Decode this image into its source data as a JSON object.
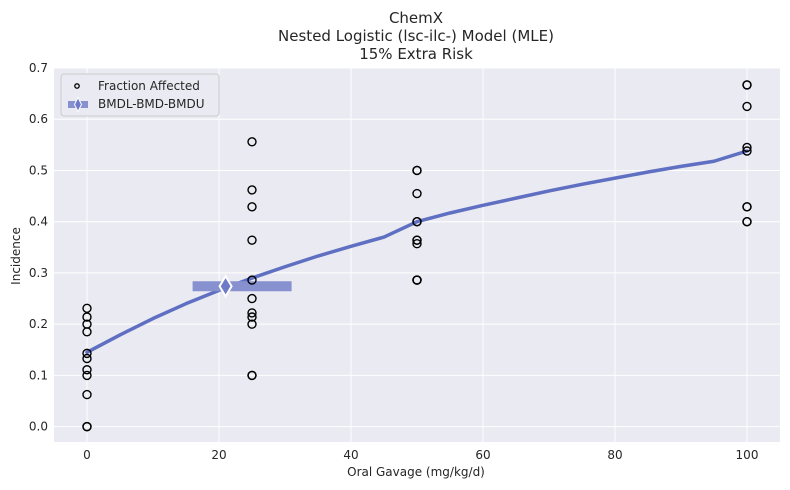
{
  "chart_data": {
    "type": "scatter",
    "title": [
      "ChemX",
      "Nested Logistic (lsc-ilc-) Model (MLE)",
      "15% Extra Risk"
    ],
    "xlabel": "Oral Gavage (mg/kg/d)",
    "ylabel": "Incidence",
    "xlim": [
      -5,
      105
    ],
    "ylim": [
      -0.03,
      0.7
    ],
    "xticks": [
      0,
      20,
      40,
      60,
      80,
      100
    ],
    "yticks": [
      0.0,
      0.1,
      0.2,
      0.3,
      0.4,
      0.5,
      0.6,
      0.7
    ],
    "xtick_labels": [
      "0",
      "20",
      "40",
      "60",
      "80",
      "100"
    ],
    "ytick_labels": [
      "0.0",
      "0.1",
      "0.2",
      "0.3",
      "0.4",
      "0.5",
      "0.6",
      "0.7"
    ],
    "grid": true,
    "legend_position": "top-left",
    "legend": [
      "Fraction Affected",
      "BMDL-BMD-BMDU"
    ],
    "colors": {
      "background": "#eaeaf2",
      "grid": "#ffffff",
      "curve": "#5f6fc1",
      "bmd_bar": "#8791cf",
      "bmd_marker": "#6f7ac8",
      "points": "#000000"
    },
    "series": [
      {
        "name": "Fraction Affected",
        "type": "scatter",
        "x": [
          0,
          0,
          0,
          0,
          0,
          0,
          0,
          0,
          0,
          0,
          0,
          25,
          25,
          25,
          25,
          25,
          25,
          25,
          25,
          25,
          25,
          25,
          50,
          50,
          50,
          50,
          50,
          50,
          50,
          50,
          50,
          50,
          50,
          100,
          100,
          100,
          100,
          100,
          100,
          100,
          100,
          100
        ],
        "y": [
          0.231,
          0.214,
          0.2,
          0.185,
          0.143,
          0.133,
          0.111,
          0.1,
          0.0625,
          0.0,
          0.0,
          0.556,
          0.462,
          0.429,
          0.364,
          0.286,
          0.25,
          0.222,
          0.214,
          0.2,
          0.1,
          0.1,
          0.5,
          0.5,
          0.455,
          0.4,
          0.4,
          0.364,
          0.364,
          0.357,
          0.286,
          0.286,
          0.286,
          0.667,
          0.667,
          0.625,
          0.545,
          0.538,
          0.429,
          0.429,
          0.4,
          0.4
        ]
      },
      {
        "name": "Model curve",
        "type": "line",
        "x": [
          0,
          5,
          10,
          15,
          20,
          25,
          30,
          35,
          40,
          45,
          50,
          55,
          60,
          65,
          70,
          75,
          80,
          85,
          90,
          95,
          100
        ],
        "y": [
          0.145,
          0.179,
          0.211,
          0.24,
          0.266,
          0.29,
          0.312,
          0.333,
          0.352,
          0.37,
          0.4,
          0.417,
          0.432,
          0.446,
          0.46,
          0.473,
          0.485,
          0.497,
          0.508,
          0.518,
          0.538
        ]
      }
    ],
    "bmd": {
      "name": "BMDL-BMD-BMDU",
      "bmdl": 16,
      "bmd": 21,
      "bmdu": 31,
      "y": 0.274
    }
  }
}
